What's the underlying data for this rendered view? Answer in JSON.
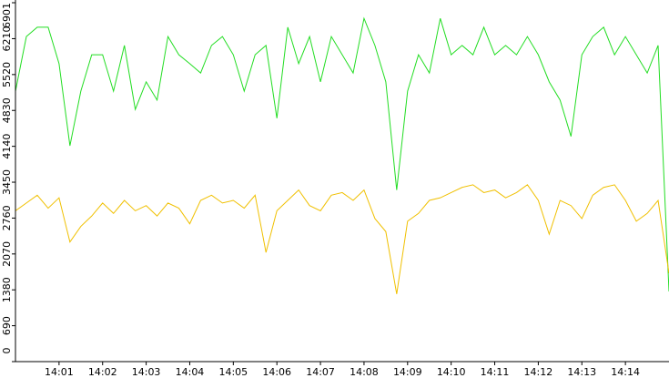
{
  "chart_data": {
    "type": "line",
    "x": [
      0,
      0.25,
      0.5,
      0.75,
      1,
      1.25,
      1.5,
      1.75,
      2,
      2.25,
      2.5,
      2.75,
      3,
      3.25,
      3.5,
      3.75,
      4,
      4.25,
      4.5,
      4.75,
      5,
      5.25,
      5.5,
      5.75,
      6,
      6.25,
      6.5,
      6.75,
      7,
      7.25,
      7.5,
      7.75,
      8,
      8.25,
      8.5,
      8.75,
      9,
      9.25,
      9.5,
      9.75,
      10,
      10.25,
      10.5,
      10.75,
      11,
      11.25,
      11.5,
      11.75,
      12,
      12.25,
      12.5,
      12.75,
      13,
      13.25,
      13.5,
      13.75,
      14,
      14.25,
      14.5,
      14.75,
      15
    ],
    "xlim": [
      0,
      15
    ],
    "xticks": [
      {
        "value": 1,
        "label": "14:01"
      },
      {
        "value": 2,
        "label": "14:02"
      },
      {
        "value": 3,
        "label": "14:03"
      },
      {
        "value": 4,
        "label": "14:04"
      },
      {
        "value": 5,
        "label": "14:05"
      },
      {
        "value": 6,
        "label": "14:06"
      },
      {
        "value": 7,
        "label": "14:07"
      },
      {
        "value": 8,
        "label": "14:08"
      },
      {
        "value": 9,
        "label": "14:09"
      },
      {
        "value": 10,
        "label": "14:10"
      },
      {
        "value": 11,
        "label": "14:11"
      },
      {
        "value": 12,
        "label": "14:12"
      },
      {
        "value": 13,
        "label": "14:13"
      },
      {
        "value": 14,
        "label": "14:14"
      }
    ],
    "ylim": [
      0,
      6901
    ],
    "yticks": [
      0,
      690,
      1380,
      2070,
      2760,
      3450,
      4140,
      4830,
      5520,
      6210,
      6901
    ],
    "series": [
      {
        "color": "#22dd22",
        "values": [
          5200,
          6250,
          6430,
          6430,
          5730,
          4150,
          5200,
          5900,
          5900,
          5200,
          6080,
          4850,
          5380,
          5030,
          6250,
          5900,
          5730,
          5550,
          6080,
          6250,
          5900,
          5200,
          5900,
          6080,
          4680,
          6430,
          5730,
          6250,
          5380,
          6250,
          5900,
          5550,
          6600,
          6080,
          5380,
          3300,
          5200,
          5900,
          5550,
          6600,
          5900,
          6080,
          5900,
          6430,
          5900,
          6080,
          5900,
          6250,
          5900,
          5380,
          5030,
          4330,
          5900,
          6250,
          6430,
          5900,
          6250,
          5900,
          5550,
          6080,
          1350
        ]
      },
      {
        "color": "#f0c000",
        "values": [
          2900,
          3050,
          3200,
          2950,
          3150,
          2300,
          2600,
          2800,
          3050,
          2850,
          3100,
          2900,
          3000,
          2800,
          3050,
          2950,
          2650,
          3100,
          3200,
          3050,
          3100,
          2950,
          3200,
          2100,
          2900,
          3100,
          3300,
          3000,
          2900,
          3200,
          3250,
          3100,
          3300,
          2750,
          2500,
          1300,
          2700,
          2850,
          3100,
          3150,
          3250,
          3350,
          3400,
          3250,
          3300,
          3150,
          3250,
          3400,
          3100,
          2450,
          3100,
          3000,
          2750,
          3200,
          3350,
          3400,
          3100,
          2700,
          2850,
          3100,
          1700
        ]
      }
    ]
  }
}
